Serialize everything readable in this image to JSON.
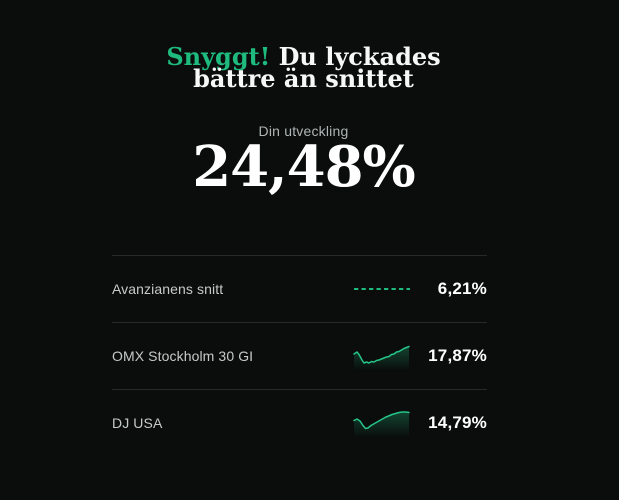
{
  "colors": {
    "background": "#0a0d0c",
    "accent_green": "#1eba7e",
    "spark_green": "#25c488",
    "divider": "#252a29",
    "label_gray": "#c5cbca",
    "subtitle_gray": "#aeb5b4",
    "value_white": "#ffffff"
  },
  "header": {
    "highlight": "Snyggt!",
    "line1_rest": "Du lyckades",
    "line2": "bättre än snittet"
  },
  "performance": {
    "label": "Din utveckling",
    "value": "24,48%"
  },
  "comparisons": [
    {
      "name": "Avanzianens snitt",
      "value": "6,21%",
      "spark_type": "dashed"
    },
    {
      "name": "OMX Stockholm 30 GI",
      "value": "17,87%",
      "spark_type": "line",
      "spark_points": [
        [
          1,
          13
        ],
        [
          4,
          11
        ],
        [
          6,
          13.5
        ],
        [
          9,
          19
        ],
        [
          11,
          22
        ],
        [
          13.5,
          21
        ],
        [
          16,
          22
        ],
        [
          18.5,
          20.5
        ],
        [
          21,
          21
        ],
        [
          23.5,
          19.5
        ],
        [
          26,
          19
        ],
        [
          28.5,
          18
        ],
        [
          31,
          17
        ],
        [
          33.5,
          16
        ],
        [
          36,
          15.5
        ],
        [
          38.5,
          13.5
        ],
        [
          41,
          13
        ],
        [
          43.5,
          11
        ],
        [
          46,
          10.5
        ],
        [
          48.5,
          9
        ],
        [
          51,
          7.5
        ],
        [
          53.5,
          6.5
        ],
        [
          56,
          5.5
        ]
      ]
    },
    {
      "name": "DJ USA",
      "value": "14,79%",
      "spark_type": "line",
      "spark_points": [
        [
          1,
          12.5
        ],
        [
          4,
          11
        ],
        [
          7,
          13
        ],
        [
          10,
          17.5
        ],
        [
          12.5,
          20.5
        ],
        [
          15,
          20
        ],
        [
          18,
          17.5
        ],
        [
          21.5,
          15.5
        ],
        [
          25,
          13.5
        ],
        [
          28.5,
          11.5
        ],
        [
          32,
          9.5
        ],
        [
          35.5,
          8
        ],
        [
          39,
          6.5
        ],
        [
          42.5,
          5.5
        ],
        [
          46,
          4.5
        ],
        [
          49.5,
          4
        ],
        [
          53,
          4
        ],
        [
          56,
          4.5
        ]
      ]
    }
  ]
}
